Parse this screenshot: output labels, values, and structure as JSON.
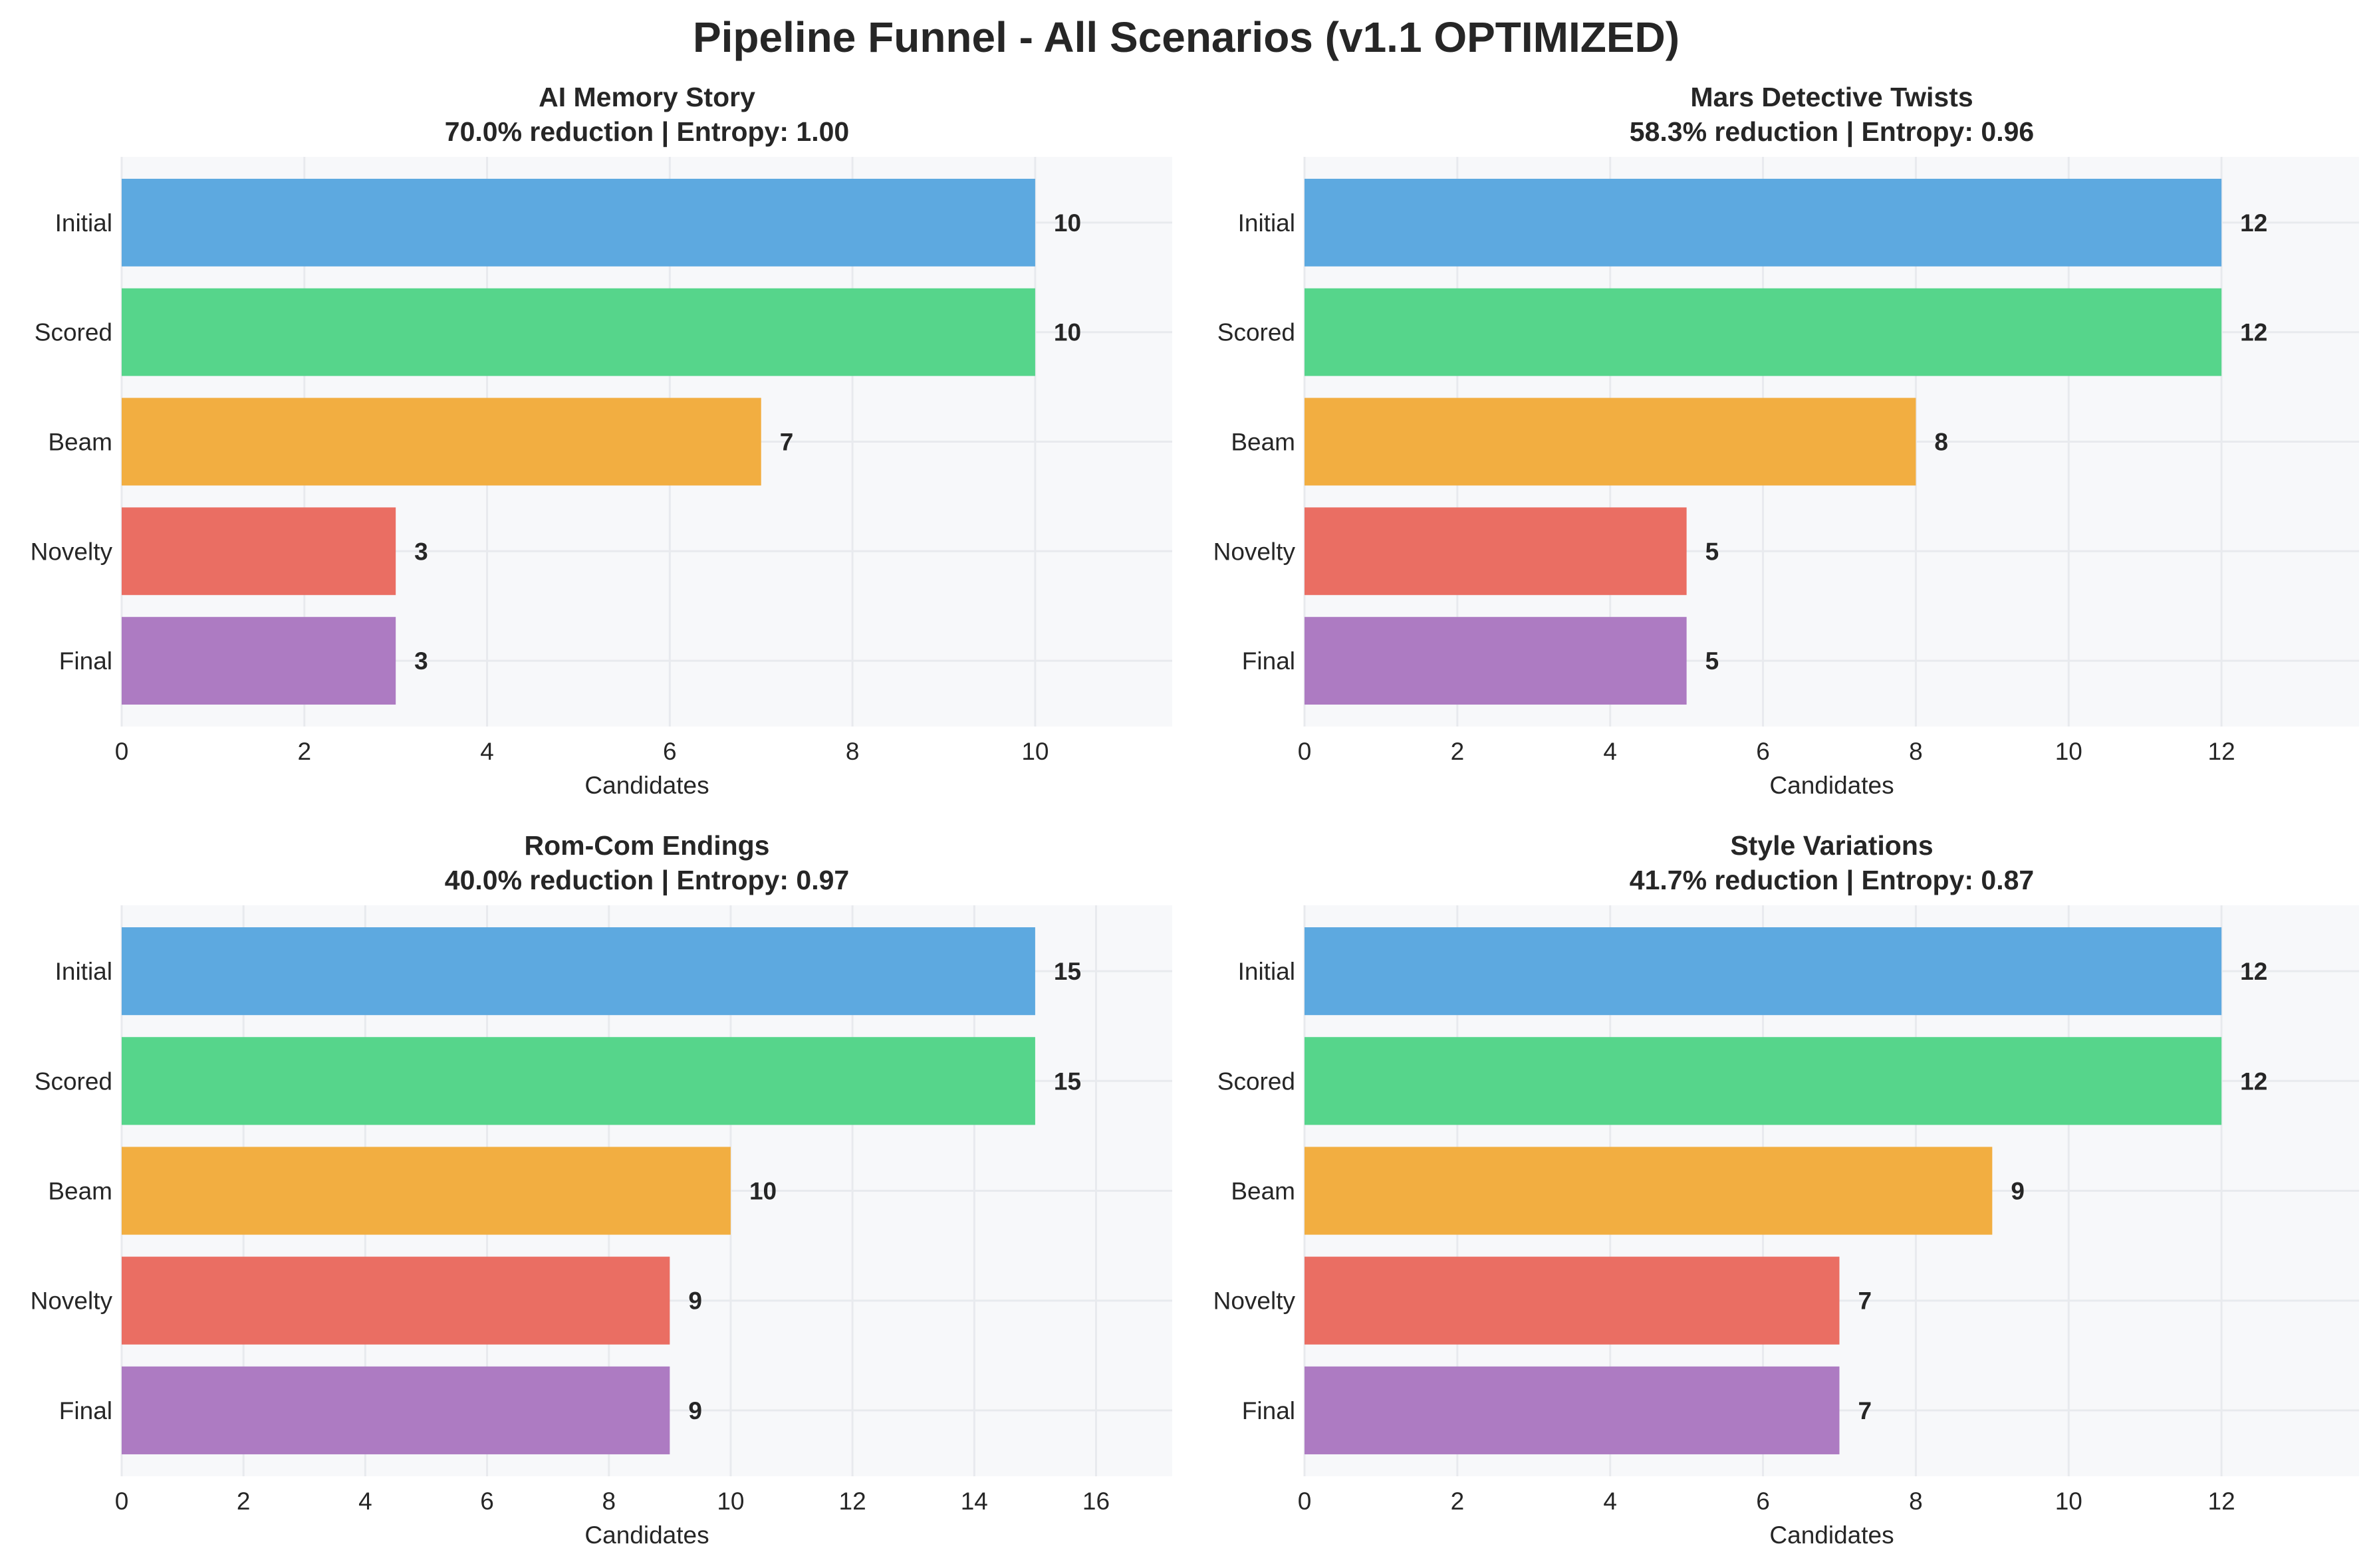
{
  "figure_title": "Pipeline Funnel - All Scenarios (v1.1 OPTIMIZED)",
  "chart_data": [
    {
      "type": "bar",
      "orientation": "horizontal",
      "title": "AI Memory Story",
      "subtitle": "70.0% reduction | Entropy: 1.00",
      "xlabel": "Candidates",
      "categories": [
        "Initial",
        "Scored",
        "Beam",
        "Novelty",
        "Final"
      ],
      "values": [
        10,
        10,
        7,
        3,
        3
      ],
      "xlim": [
        0,
        11.5
      ],
      "xticks": [
        "0",
        "2",
        "4",
        "6",
        "8",
        "10"
      ],
      "grid": true
    },
    {
      "type": "bar",
      "orientation": "horizontal",
      "title": "Mars Detective Twists",
      "subtitle": "58.3% reduction | Entropy: 0.96",
      "xlabel": "Candidates",
      "categories": [
        "Initial",
        "Scored",
        "Beam",
        "Novelty",
        "Final"
      ],
      "values": [
        12,
        12,
        8,
        5,
        5
      ],
      "xlim": [
        0,
        13.8
      ],
      "xticks": [
        "0",
        "2",
        "4",
        "6",
        "8",
        "10",
        "12"
      ],
      "grid": true
    },
    {
      "type": "bar",
      "orientation": "horizontal",
      "title": "Rom-Com Endings",
      "subtitle": "40.0% reduction | Entropy: 0.97",
      "xlabel": "Candidates",
      "categories": [
        "Initial",
        "Scored",
        "Beam",
        "Novelty",
        "Final"
      ],
      "values": [
        15,
        15,
        10,
        9,
        9
      ],
      "xlim": [
        0,
        17.25
      ],
      "xticks": [
        "0",
        "2",
        "4",
        "6",
        "8",
        "10",
        "12",
        "14",
        "16"
      ],
      "grid": true
    },
    {
      "type": "bar",
      "orientation": "horizontal",
      "title": "Style Variations",
      "subtitle": "41.7% reduction | Entropy: 0.87",
      "xlabel": "Candidates",
      "categories": [
        "Initial",
        "Scored",
        "Beam",
        "Novelty",
        "Final"
      ],
      "values": [
        12,
        12,
        9,
        7,
        7
      ],
      "xlim": [
        0,
        13.8
      ],
      "xticks": [
        "0",
        "2",
        "4",
        "6",
        "8",
        "10",
        "12"
      ],
      "grid": true
    }
  ],
  "colors": {
    "Initial": "#5DA9E0",
    "Scored": "#56D58B",
    "Beam": "#F2AE41",
    "Novelty": "#EA6E63",
    "Final": "#AD7BC2",
    "plot_background": "#F7F8FA",
    "grid": "#E8EAEE"
  }
}
